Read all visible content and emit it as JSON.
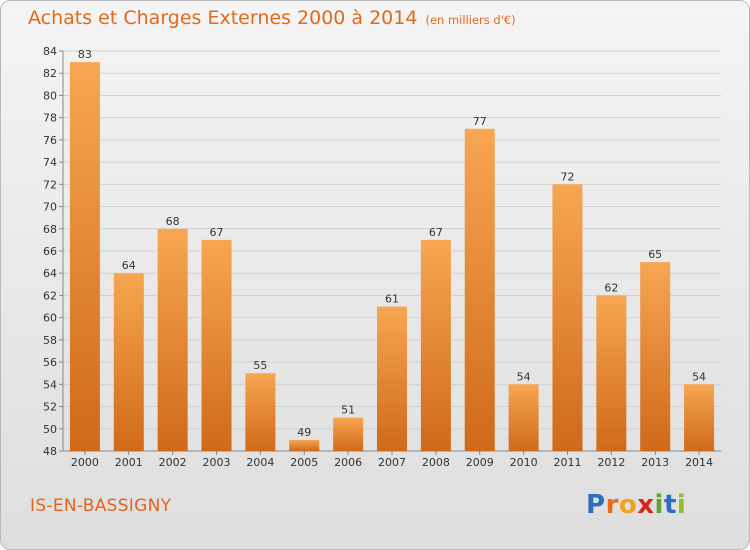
{
  "header": {
    "title": "Achats et Charges Externes 2000 à 2014",
    "subtitle": "(en milliers d'€)"
  },
  "footer": {
    "commune": "IS-EN-BASSIGNY",
    "logo_letters": [
      "P",
      "r",
      "o",
      "x",
      "i",
      "t",
      "i"
    ],
    "logo_colors": [
      "#2a6fbd",
      "#e86a1f",
      "#f0a31b",
      "#d8261e",
      "#5aa52a",
      "#2a6fbd",
      "#8cbf2a"
    ]
  },
  "colors": {
    "bar_top": "#f7a652",
    "bar_bottom": "#cf6a1a",
    "accent": "#e06a1c"
  },
  "chart_data": {
    "type": "bar",
    "title": "Achats et Charges Externes 2000 à 2014",
    "subtitle": "(en milliers d'€)",
    "categories": [
      "2000",
      "2001",
      "2002",
      "2003",
      "2004",
      "2005",
      "2006",
      "2007",
      "2008",
      "2009",
      "2010",
      "2011",
      "2012",
      "2013",
      "2014"
    ],
    "values": [
      83,
      64,
      68,
      67,
      55,
      49,
      51,
      61,
      67,
      77,
      54,
      72,
      62,
      65,
      54
    ],
    "ylim": [
      48,
      84
    ],
    "yticks": [
      48,
      50,
      52,
      54,
      56,
      58,
      60,
      62,
      64,
      66,
      68,
      70,
      72,
      74,
      76,
      78,
      80,
      82,
      84
    ],
    "grid": true,
    "xlabel": "",
    "ylabel": ""
  }
}
